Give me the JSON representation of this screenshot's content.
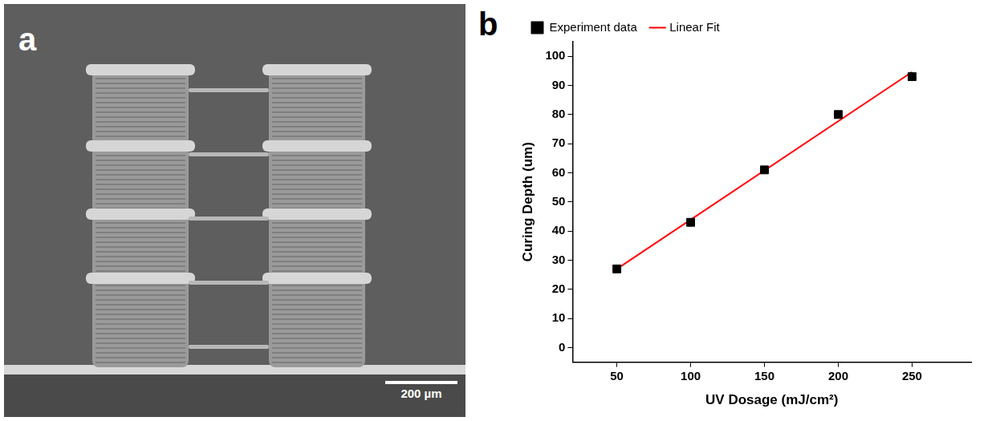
{
  "image_panel": {
    "panel_label": "a",
    "scale_bar": "200 µm"
  },
  "chart_data": {
    "panel_label": "b",
    "type": "scatter",
    "x_label": "UV Dosage (mJ/cm²)",
    "y_label": "Curing Depth (um)",
    "series": [
      {
        "name": "Experiment data",
        "type": "scatter",
        "marker": "square",
        "color": "#000000",
        "x": [
          50,
          100,
          150,
          200,
          250
        ],
        "values": [
          27,
          43,
          61,
          80,
          93
        ]
      },
      {
        "name": "Linear Fit",
        "type": "line",
        "line_style": "solid",
        "color": "#ff0000",
        "x": [
          50,
          250
        ],
        "values": [
          27,
          94.6
        ]
      }
    ],
    "xlim": [
      20,
      290
    ],
    "xticks": [
      50,
      100,
      150,
      200,
      250
    ],
    "ylim": [
      -5,
      105
    ],
    "yticks": [
      0,
      10,
      20,
      30,
      40,
      50,
      60,
      70,
      80,
      90,
      100
    ],
    "grid": false,
    "legend": "top-left"
  }
}
